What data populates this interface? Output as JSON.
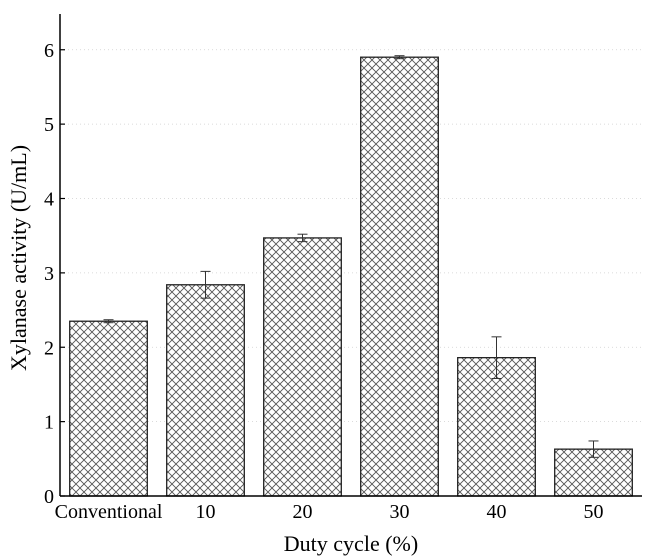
{
  "chart_data": {
    "type": "bar",
    "title": "",
    "xlabel": "Duty cycle (%)",
    "ylabel": "Xylanase activity (U/mL)",
    "categories": [
      "Conventional",
      "10",
      "20",
      "30",
      "40",
      "50"
    ],
    "values": [
      2.35,
      2.84,
      3.47,
      5.9,
      1.86,
      0.63
    ],
    "errors": [
      0.02,
      0.18,
      0.05,
      0.02,
      0.28,
      0.11
    ],
    "ylim": [
      0,
      6.4
    ],
    "yticks": [
      0,
      1,
      2,
      3,
      4,
      5,
      6
    ],
    "grid": true,
    "bar_fill": "cross-hatch",
    "bar_color": "#333333",
    "legend": "none"
  }
}
